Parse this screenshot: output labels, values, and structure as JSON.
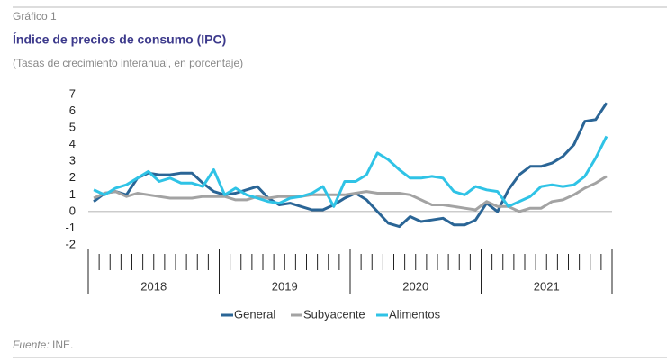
{
  "chart_data": {
    "type": "line",
    "label": "Gráfico 1",
    "title": "Índice de precios de consumo (IPC)",
    "subtitle": "(Tasas de crecimiento interanual, en porcentaje)",
    "source_label": "Fuente:",
    "source": "INE.",
    "years": [
      "2018",
      "2019",
      "2020",
      "2021"
    ],
    "ylim": [
      -2,
      7
    ],
    "yticks": [
      -2,
      -1,
      0,
      1,
      2,
      3,
      4,
      5,
      6,
      7
    ],
    "series": [
      {
        "name": "General",
        "color": "#2a6596",
        "values": [
          0.6,
          1.1,
          1.2,
          1.0,
          2.0,
          2.3,
          2.2,
          2.2,
          2.3,
          2.3,
          1.7,
          1.2,
          1.0,
          1.1,
          1.3,
          1.5,
          0.8,
          0.4,
          0.5,
          0.3,
          0.1,
          0.1,
          0.4,
          0.8,
          1.1,
          0.7,
          0.0,
          -0.7,
          -0.9,
          -0.3,
          -0.6,
          -0.5,
          -0.4,
          -0.8,
          -0.8,
          -0.5,
          0.5,
          0.0,
          1.3,
          2.2,
          2.7,
          2.7,
          2.9,
          3.3,
          4.0,
          5.4,
          5.5,
          6.5
        ]
      },
      {
        "name": "Subyacente",
        "color": "#a3a3a3",
        "values": [
          0.8,
          1.1,
          1.2,
          0.9,
          1.1,
          1.0,
          0.9,
          0.8,
          0.8,
          0.8,
          0.9,
          0.9,
          0.9,
          0.7,
          0.7,
          0.9,
          0.8,
          0.9,
          0.9,
          0.9,
          1.0,
          1.0,
          1.0,
          1.0,
          1.1,
          1.2,
          1.1,
          1.1,
          1.1,
          1.0,
          0.7,
          0.4,
          0.4,
          0.3,
          0.2,
          0.1,
          0.6,
          0.3,
          0.3,
          0.0,
          0.2,
          0.2,
          0.6,
          0.7,
          1.0,
          1.4,
          1.7,
          2.1
        ]
      },
      {
        "name": "Alimentos",
        "color": "#2fc3e6",
        "values": [
          1.3,
          1.0,
          1.4,
          1.6,
          2.0,
          2.4,
          1.8,
          2.0,
          1.7,
          1.7,
          1.5,
          2.5,
          1.0,
          1.4,
          1.0,
          0.8,
          0.6,
          0.5,
          0.8,
          0.9,
          1.1,
          1.5,
          0.3,
          1.8,
          1.8,
          2.2,
          3.5,
          3.1,
          2.5,
          2.0,
          2.0,
          2.1,
          2.0,
          1.2,
          1.0,
          1.5,
          1.3,
          1.2,
          0.3,
          0.6,
          0.9,
          1.5,
          1.6,
          1.5,
          1.6,
          2.1,
          3.2,
          4.5
        ]
      }
    ]
  }
}
